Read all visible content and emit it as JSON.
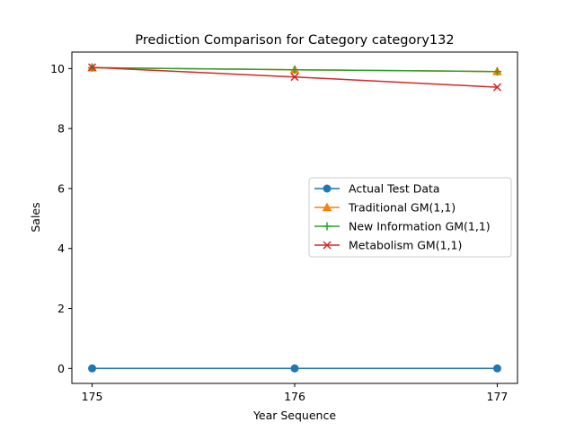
{
  "chart_data": {
    "type": "line",
    "title": "Prediction Comparison for Category category132",
    "xlabel": "Year Sequence",
    "ylabel": "Sales",
    "x": [
      175,
      176,
      177
    ],
    "xticks": [
      "175",
      "176",
      "177"
    ],
    "yticks": [
      "0",
      "2",
      "4",
      "6",
      "8",
      "10"
    ],
    "xlim": [
      174.9,
      177.1
    ],
    "ylim": [
      -0.5,
      10.55
    ],
    "grid": false,
    "legend_position": "center-right",
    "series": [
      {
        "name": "Actual Test Data",
        "values": [
          0,
          0,
          0
        ],
        "color": "#1f77b4",
        "marker": "circle"
      },
      {
        "name": "Traditional GM(1,1)",
        "values": [
          10.03,
          9.96,
          9.9
        ],
        "color": "#ff7f0e",
        "marker": "triangle"
      },
      {
        "name": "New Information GM(1,1)",
        "values": [
          10.03,
          9.96,
          9.9
        ],
        "color": "#2ca02c",
        "marker": "plus"
      },
      {
        "name": "Metabolism GM(1,1)",
        "values": [
          10.04,
          9.72,
          9.38
        ],
        "color": "#d62728",
        "marker": "x"
      }
    ]
  }
}
